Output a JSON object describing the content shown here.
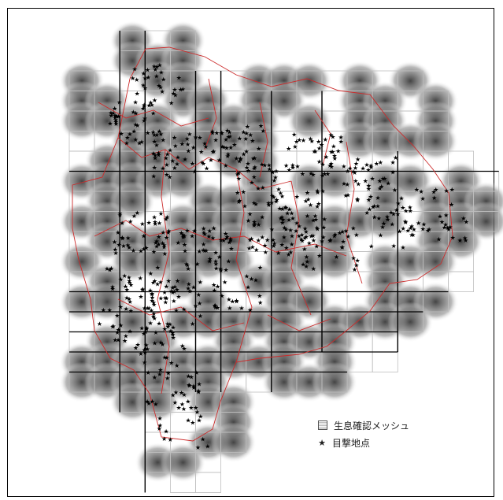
{
  "map": {
    "legend": [
      {
        "label": "生息確認メッシュ",
        "icon": "mesh-swatch-icon"
      },
      {
        "label": "目撃地点",
        "icon": "star-icon"
      }
    ],
    "colors": {
      "boundary": "#cc2b2b",
      "grid": "#bfbfbf",
      "grid_bold": "#000000",
      "marker": "#000000"
    }
  }
}
